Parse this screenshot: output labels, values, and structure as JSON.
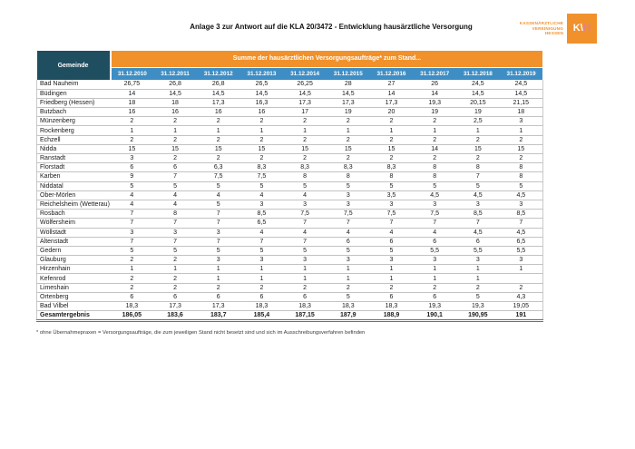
{
  "page": {
    "title": "Anlage 3 zur Antwort auf die KLA 20/3472 - Entwicklung hausärztliche Versorgung"
  },
  "logo": {
    "line1": "KASSENÄRZTLICHE",
    "line2": "VEREINIGUNG",
    "line3": "HESSEN",
    "mark_kv": "K\\",
    "mark_h": "H"
  },
  "colors": {
    "orange": "#F0912C",
    "blue": "#3E8EC5",
    "dark": "#1F4E61"
  },
  "table": {
    "corner_header": "Gemeinde",
    "banner": "Summe der hausärztlichen Versorgungsaufträge* zum Stand...",
    "date_columns": [
      "31.12.2010",
      "31.12.2011",
      "31.12.2012",
      "31.12.2013",
      "31.12.2014",
      "31.12.2015",
      "31.12.2016",
      "31.12.2017",
      "31.12.2018",
      "31.12.2019"
    ],
    "rows": [
      {
        "gemeinde": "Bad Nauheim",
        "values": [
          "26,75",
          "26,8",
          "26,8",
          "26,5",
          "26,25",
          "28",
          "27",
          "26",
          "24,5",
          "24,5"
        ]
      },
      {
        "gemeinde": "Büdingen",
        "values": [
          "14",
          "14,5",
          "14,5",
          "14,5",
          "14,5",
          "14,5",
          "14",
          "14",
          "14,5",
          "14,5"
        ]
      },
      {
        "gemeinde": "Friedberg (Hessen)",
        "values": [
          "18",
          "18",
          "17,3",
          "16,3",
          "17,3",
          "17,3",
          "17,3",
          "19,3",
          "20,15",
          "21,15"
        ]
      },
      {
        "gemeinde": "Butzbach",
        "values": [
          "16",
          "16",
          "16",
          "16",
          "17",
          "19",
          "20",
          "19",
          "19",
          "18"
        ]
      },
      {
        "gemeinde": "Münzenberg",
        "values": [
          "2",
          "2",
          "2",
          "2",
          "2",
          "2",
          "2",
          "2",
          "2,5",
          "3"
        ]
      },
      {
        "gemeinde": "Rockenberg",
        "values": [
          "1",
          "1",
          "1",
          "1",
          "1",
          "1",
          "1",
          "1",
          "1",
          "1"
        ]
      },
      {
        "gemeinde": "Echzell",
        "values": [
          "2",
          "2",
          "2",
          "2",
          "2",
          "2",
          "2",
          "2",
          "2",
          "2"
        ]
      },
      {
        "gemeinde": "Nidda",
        "values": [
          "15",
          "15",
          "15",
          "15",
          "15",
          "15",
          "15",
          "14",
          "15",
          "15"
        ]
      },
      {
        "gemeinde": "Ranstadt",
        "values": [
          "3",
          "2",
          "2",
          "2",
          "2",
          "2",
          "2",
          "2",
          "2",
          "2"
        ]
      },
      {
        "gemeinde": "Florstadt",
        "values": [
          "6",
          "6",
          "6,3",
          "8,3",
          "8,3",
          "8,3",
          "8,3",
          "8",
          "8",
          "8"
        ]
      },
      {
        "gemeinde": "Karben",
        "values": [
          "9",
          "7",
          "7,5",
          "7,5",
          "8",
          "8",
          "8",
          "8",
          "7",
          "8"
        ]
      },
      {
        "gemeinde": "Niddatal",
        "values": [
          "5",
          "5",
          "5",
          "5",
          "5",
          "5",
          "5",
          "5",
          "5",
          "5"
        ]
      },
      {
        "gemeinde": "Ober-Mörlen",
        "values": [
          "4",
          "4",
          "4",
          "4",
          "4",
          "3",
          "3,5",
          "4,5",
          "4,5",
          "4,5"
        ]
      },
      {
        "gemeinde": "Reichelsheim (Wetterau)",
        "values": [
          "4",
          "4",
          "5",
          "3",
          "3",
          "3",
          "3",
          "3",
          "3",
          "3"
        ]
      },
      {
        "gemeinde": "Rosbach",
        "values": [
          "7",
          "8",
          "7",
          "8,5",
          "7,5",
          "7,5",
          "7,5",
          "7,5",
          "8,5",
          "8,5"
        ]
      },
      {
        "gemeinde": "Wölfersheim",
        "values": [
          "7",
          "7",
          "7",
          "6,5",
          "7",
          "7",
          "7",
          "7",
          "7",
          "7"
        ]
      },
      {
        "gemeinde": "Wöllstadt",
        "values": [
          "3",
          "3",
          "3",
          "4",
          "4",
          "4",
          "4",
          "4",
          "4,5",
          "4,5"
        ]
      },
      {
        "gemeinde": "Altenstadt",
        "values": [
          "7",
          "7",
          "7",
          "7",
          "7",
          "6",
          "6",
          "6",
          "6",
          "6,5"
        ]
      },
      {
        "gemeinde": "Gedern",
        "values": [
          "5",
          "5",
          "5",
          "5",
          "5",
          "5",
          "5",
          "5,5",
          "5,5",
          "5,5"
        ]
      },
      {
        "gemeinde": "Glauburg",
        "values": [
          "2",
          "2",
          "3",
          "3",
          "3",
          "3",
          "3",
          "3",
          "3",
          "3"
        ]
      },
      {
        "gemeinde": "Hirzenhain",
        "values": [
          "1",
          "1",
          "1",
          "1",
          "1",
          "1",
          "1",
          "1",
          "1",
          "1"
        ]
      },
      {
        "gemeinde": "Kefenrod",
        "values": [
          "2",
          "2",
          "1",
          "1",
          "1",
          "1",
          "1",
          "1",
          "1",
          ""
        ]
      },
      {
        "gemeinde": "Limeshain",
        "values": [
          "2",
          "2",
          "2",
          "2",
          "2",
          "2",
          "2",
          "2",
          "2",
          "2"
        ]
      },
      {
        "gemeinde": "Ortenberg",
        "values": [
          "6",
          "6",
          "6",
          "6",
          "6",
          "5",
          "6",
          "6",
          "5",
          "4,3"
        ]
      },
      {
        "gemeinde": "Bad Vilbel",
        "values": [
          "18,3",
          "17,3",
          "17,3",
          "18,3",
          "18,3",
          "18,3",
          "18,3",
          "19,3",
          "19,3",
          "19,05"
        ]
      }
    ],
    "total_row": {
      "gemeinde": "Gesamtergebnis",
      "values": [
        "186,05",
        "183,6",
        "183,7",
        "185,4",
        "187,15",
        "187,9",
        "188,9",
        "190,1",
        "190,95",
        "191"
      ]
    }
  },
  "footnote": "* ohne Übernahmepraxen = Versorgungsaufträge, die zum jeweiligen Stand nicht besetzt sind und sich im Ausschreibungsverfahren befinden"
}
